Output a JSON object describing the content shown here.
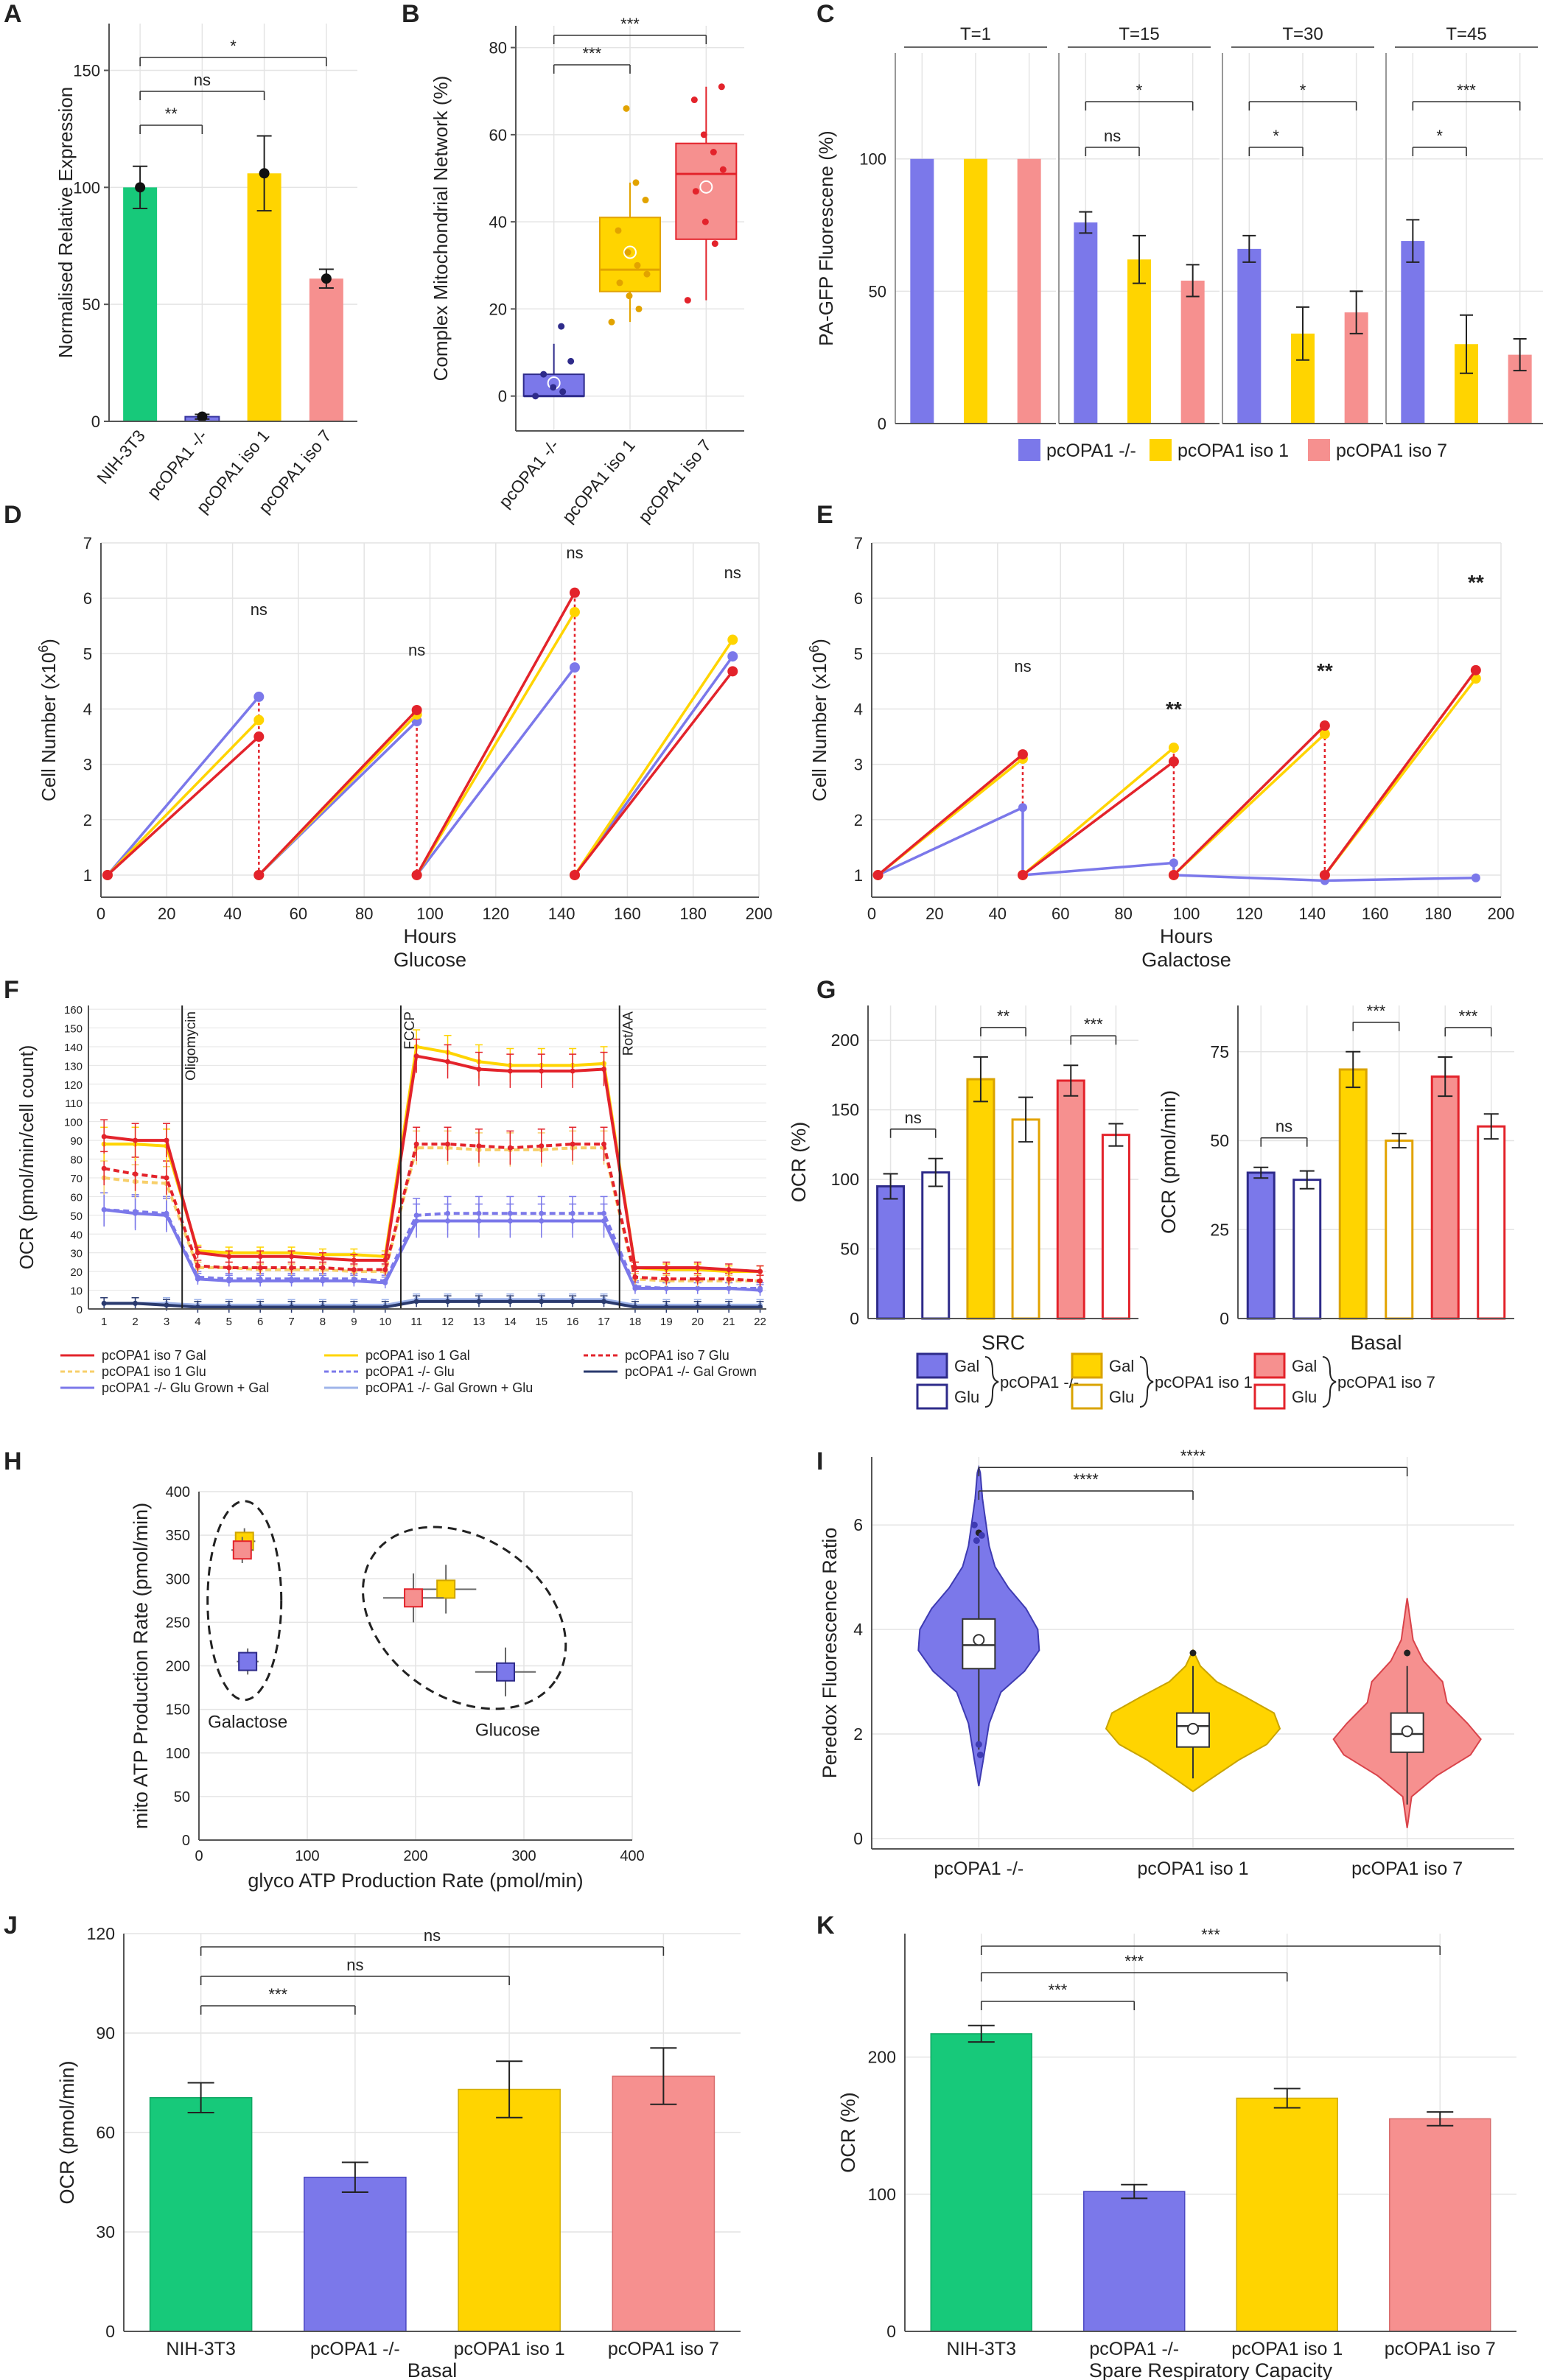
{
  "colors": {
    "green": "#17c97a",
    "blue": "#7b78ea",
    "yellow": "#ffd400",
    "pink": "#f6908f",
    "red": "#e3232b",
    "lightyellow": "#f7cf6a",
    "lightblue": "#9fb4ea",
    "darkblue": "#2a3a6e",
    "navy": "#2e2b8a",
    "gridline": "#e4e4e4"
  },
  "chart_data": [
    {
      "id": "A",
      "type": "bar",
      "title": "",
      "xlabel": "",
      "ylabel": "Normalised Relative Expression",
      "ylim": [
        0,
        170
      ],
      "yticks": [
        "0",
        "50",
        "100",
        "150"
      ],
      "categories": [
        "NIH-3T3",
        "pcOPA1 -/-",
        "pcOPA1 iso 1",
        "pcOPA1 iso 7"
      ],
      "values": [
        100,
        2,
        106,
        61
      ],
      "errors": [
        9,
        1,
        16,
        4
      ],
      "significance": [
        {
          "pair": [
            0,
            1
          ],
          "label": "**"
        },
        {
          "pair": [
            0,
            2
          ],
          "label": "ns"
        },
        {
          "pair": [
            0,
            3
          ],
          "label": "*"
        }
      ]
    },
    {
      "id": "B",
      "type": "box",
      "ylabel": "Complex Mitochondrial Network (%)",
      "ylim": [
        -8,
        85
      ],
      "yticks": [
        "0",
        "20",
        "40",
        "60",
        "80"
      ],
      "categories": [
        "pcOPA1 -/-",
        "pcOPA1 iso 1",
        "pcOPA1 iso 7"
      ],
      "boxes": [
        {
          "q1": 0,
          "median": 0,
          "q3": 5,
          "lo": 0,
          "hi": 12,
          "mean": 3
        },
        {
          "q1": 24,
          "median": 29,
          "q3": 41,
          "lo": 17,
          "hi": 49,
          "mean": 33
        },
        {
          "q1": 36,
          "median": 51,
          "q3": 58,
          "lo": 22,
          "hi": 71,
          "mean": 48
        }
      ],
      "significance": [
        {
          "pair": [
            0,
            1
          ],
          "label": "***"
        },
        {
          "pair": [
            0,
            2
          ],
          "label": "***"
        }
      ]
    },
    {
      "id": "C",
      "type": "bar",
      "ylabel": "PA-GFP Fluorescene (%)",
      "ylim": [
        0,
        140
      ],
      "yticks": [
        "0",
        "50",
        "100"
      ],
      "facets": [
        "T=1",
        "T=15",
        "T=30",
        "T=45"
      ],
      "series": [
        {
          "name": "pcOPA1 -/-",
          "values": [
            100,
            76,
            66,
            69
          ],
          "errors": [
            0,
            4,
            5,
            8
          ]
        },
        {
          "name": "pcOPA1 iso 1",
          "values": [
            100,
            62,
            34,
            30
          ],
          "errors": [
            0,
            9,
            10,
            11
          ]
        },
        {
          "name": "pcOPA1 iso 7",
          "values": [
            100,
            54,
            42,
            26
          ],
          "errors": [
            0,
            6,
            8,
            6
          ]
        }
      ],
      "significance": [
        [
          "",
          ""
        ],
        [
          "ns",
          "*"
        ],
        [
          "*",
          "*"
        ],
        [
          "*",
          "***"
        ]
      ],
      "legend": [
        "pcOPA1 -/-",
        "pcOPA1 iso 1",
        "pcOPA1 iso 7"
      ]
    },
    {
      "id": "D",
      "type": "line",
      "title": "Glucose",
      "xlabel": "Hours",
      "ylabel": "Cell Number (x10",
      "ylabel_sup": "6",
      "ylabel_end": ")",
      "xlim": [
        0,
        200
      ],
      "ylim": [
        0.6,
        7
      ],
      "xticks": [
        "0",
        "20",
        "40",
        "60",
        "80",
        "100",
        "120",
        "140",
        "160",
        "180",
        "200"
      ],
      "yticks": [
        "1",
        "2",
        "3",
        "4",
        "5",
        "6",
        "7"
      ],
      "series": [
        {
          "name": "pcOPA1 -/-",
          "segments": [
            [
              [
                2,
                1
              ],
              [
                48,
                4.22
              ]
            ],
            [
              [
                48,
                1
              ],
              [
                96,
                3.78
              ]
            ],
            [
              [
                96,
                1
              ],
              [
                144,
                4.75
              ]
            ],
            [
              [
                144,
                1
              ],
              [
                192,
                4.95
              ]
            ]
          ]
        },
        {
          "name": "pcOPA1 iso 1",
          "segments": [
            [
              [
                2,
                1
              ],
              [
                48,
                3.8
              ]
            ],
            [
              [
                48,
                1
              ],
              [
                96,
                3.9
              ]
            ],
            [
              [
                96,
                1
              ],
              [
                144,
                5.75
              ]
            ],
            [
              [
                144,
                1
              ],
              [
                192,
                5.25
              ]
            ]
          ]
        },
        {
          "name": "pcOPA1 iso 7",
          "segments": [
            [
              [
                2,
                1
              ],
              [
                48,
                3.5
              ]
            ],
            [
              [
                48,
                1
              ],
              [
                96,
                3.98
              ]
            ],
            [
              [
                96,
                1
              ],
              [
                144,
                6.1
              ]
            ],
            [
              [
                144,
                1
              ],
              [
                192,
                4.68
              ]
            ]
          ]
        }
      ],
      "annotations": [
        "ns",
        "ns",
        "ns",
        "ns"
      ]
    },
    {
      "id": "E",
      "type": "line",
      "title": "Galactose",
      "xlabel": "Hours",
      "ylabel": "Cell Number (x10",
      "ylabel_sup": "6",
      "ylabel_end": ")",
      "xlim": [
        0,
        200
      ],
      "ylim": [
        0.6,
        7
      ],
      "xticks": [
        "0",
        "20",
        "40",
        "60",
        "80",
        "100",
        "120",
        "140",
        "160",
        "180",
        "200"
      ],
      "yticks": [
        "1",
        "2",
        "3",
        "4",
        "5",
        "6",
        "7"
      ],
      "series": [
        {
          "name": "pcOPA1 -/-",
          "points": [
            [
              2,
              1
            ],
            [
              48,
              2.22
            ],
            [
              48,
              1
            ],
            [
              96,
              1.22
            ],
            [
              96,
              1
            ],
            [
              144,
              0.9
            ],
            [
              192,
              0.95
            ]
          ]
        },
        {
          "name": "pcOPA1 iso 1",
          "segments": [
            [
              [
                2,
                1
              ],
              [
                48,
                3.1
              ]
            ],
            [
              [
                48,
                1
              ],
              [
                96,
                3.3
              ]
            ],
            [
              [
                96,
                1
              ],
              [
                144,
                3.55
              ]
            ],
            [
              [
                144,
                1
              ],
              [
                192,
                4.55
              ]
            ]
          ]
        },
        {
          "name": "pcOPA1 iso 7",
          "segments": [
            [
              [
                2,
                1
              ],
              [
                48,
                3.18
              ]
            ],
            [
              [
                48,
                1
              ],
              [
                96,
                3.05
              ]
            ],
            [
              [
                96,
                1
              ],
              [
                144,
                3.7
              ]
            ],
            [
              [
                144,
                1
              ],
              [
                192,
                4.7
              ]
            ]
          ]
        }
      ],
      "annotations": [
        "ns",
        "**",
        "**",
        "**"
      ]
    },
    {
      "id": "F",
      "type": "line",
      "ylabel": "OCR (pmol/min/cell count)",
      "xlim": [
        0.5,
        22.2
      ],
      "ylim": [
        0,
        162
      ],
      "xticks": [
        "1",
        "2",
        "3",
        "4",
        "5",
        "6",
        "7",
        "8",
        "9",
        "10",
        "11",
        "12",
        "13",
        "14",
        "15",
        "16",
        "17",
        "18",
        "19",
        "20",
        "21",
        "22"
      ],
      "yticks": [
        "0",
        "10",
        "20",
        "30",
        "40",
        "50",
        "60",
        "70",
        "80",
        "90",
        "100",
        "110",
        "120",
        "130",
        "140",
        "150",
        "160"
      ],
      "injections": [
        "Oligomycin",
        "FCCP",
        "Rot/AA"
      ],
      "series": [
        {
          "name": "pcOPA1 iso 7 Gal",
          "values": [
            92,
            90,
            90,
            30,
            28,
            28,
            28,
            27,
            26,
            26,
            135,
            132,
            128,
            127,
            127,
            127,
            128,
            22,
            22,
            22,
            21,
            20
          ]
        },
        {
          "name": "pcOPA1 iso 1 Gal",
          "values": [
            88,
            88,
            87,
            31,
            30,
            30,
            30,
            29,
            29,
            28,
            140,
            137,
            132,
            130,
            130,
            130,
            131,
            22,
            21,
            21,
            20,
            20
          ]
        },
        {
          "name": "pcOPA1 iso 7 Glu",
          "values": [
            75,
            72,
            70,
            23,
            22,
            22,
            22,
            22,
            21,
            21,
            88,
            88,
            87,
            86,
            87,
            88,
            88,
            17,
            16,
            16,
            16,
            15
          ]
        },
        {
          "name": "pcOPA1 iso 1 Glu",
          "values": [
            70,
            68,
            67,
            22,
            22,
            21,
            21,
            21,
            20,
            20,
            86,
            86,
            85,
            85,
            85,
            86,
            86,
            16,
            15,
            15,
            15,
            15
          ]
        },
        {
          "name": "pcOPA1 -/- Glu",
          "values": [
            53,
            52,
            51,
            17,
            16,
            16,
            16,
            16,
            16,
            15,
            50,
            51,
            51,
            51,
            51,
            51,
            51,
            12,
            11,
            11,
            11,
            11
          ]
        },
        {
          "name": "pcOPA1 -/- Gal Grown",
          "values": [
            3,
            3,
            2,
            1,
            1,
            1,
            1,
            1,
            1,
            1,
            4,
            4,
            4,
            4,
            4,
            4,
            4,
            1,
            1,
            1,
            1,
            1
          ]
        },
        {
          "name": "pcOPA1 -/- Glu Grown + Gal",
          "values": [
            53,
            51,
            50,
            16,
            15,
            15,
            15,
            15,
            15,
            14,
            47,
            47,
            47,
            47,
            47,
            47,
            47,
            11,
            11,
            11,
            11,
            10
          ]
        },
        {
          "name": "pcOPA1 -/- Gal Grown + Glu",
          "values": [
            3,
            3,
            3,
            2,
            2,
            2,
            2,
            2,
            2,
            2,
            5,
            5,
            5,
            5,
            5,
            5,
            5,
            2,
            2,
            2,
            2,
            2
          ]
        }
      ]
    },
    {
      "id": "G",
      "type": "bar",
      "panels": [
        {
          "xlabel": "SRC",
          "ylabel": "OCR (%)",
          "ylim": [
            0,
            225
          ],
          "yticks": [
            "0",
            "50",
            "100",
            "150",
            "200"
          ],
          "values": [
            95,
            105,
            172,
            143,
            171,
            132
          ],
          "errors": [
            9,
            10,
            16,
            16,
            11,
            8
          ],
          "significance": [
            "ns",
            "**",
            "***"
          ]
        },
        {
          "xlabel": "Basal",
          "ylabel": "OCR (pmol/min)",
          "ylim": [
            0,
            88
          ],
          "yticks": [
            "0",
            "25",
            "50",
            "75"
          ],
          "values": [
            41,
            39,
            70,
            50,
            68,
            54
          ],
          "errors": [
            1.5,
            2.5,
            5,
            2,
            5.5,
            3.5
          ],
          "significance": [
            "ns",
            "***",
            "***"
          ]
        }
      ],
      "groups": [
        "pcOPA1 -/-",
        "pcOPA1 iso 1",
        "pcOPA1 iso 7"
      ],
      "conditions": [
        "Gal",
        "Glu"
      ]
    },
    {
      "id": "H",
      "type": "scatter",
      "xlabel": "glyco ATP Production Rate (pmol/min)",
      "ylabel": "mito ATP Production Rate (pmol/min)",
      "xlim": [
        0,
        400
      ],
      "ylim": [
        0,
        400
      ],
      "xticks": [
        "0",
        "100",
        "200",
        "300",
        "400"
      ],
      "yticks": [
        "0",
        "50",
        "100",
        "150",
        "200",
        "250",
        "300",
        "350",
        "400"
      ],
      "points": [
        {
          "group": "Galactose",
          "series": "pcOPA1 iso 1",
          "x": 42,
          "y": 343
        },
        {
          "group": "Galactose",
          "series": "pcOPA1 iso 7",
          "x": 40,
          "y": 333
        },
        {
          "group": "Galactose",
          "series": "pcOPA1 -/-",
          "x": 45,
          "y": 205
        },
        {
          "group": "Glucose",
          "series": "pcOPA1 iso 1",
          "x": 228,
          "y": 288
        },
        {
          "group": "Glucose",
          "series": "pcOPA1 iso 7",
          "x": 198,
          "y": 278
        },
        {
          "group": "Glucose",
          "series": "pcOPA1 -/-",
          "x": 283,
          "y": 193
        }
      ],
      "annotations": [
        "Galactose",
        "Glucose"
      ]
    },
    {
      "id": "I",
      "type": "violin",
      "ylabel": "Peredox Fluorescence Ratio",
      "ylim": [
        -0.2,
        7.3
      ],
      "yticks": [
        "0",
        "2",
        "4",
        "6"
      ],
      "categories": [
        "pcOPA1 -/-",
        "pcOPA1 iso 1",
        "pcOPA1 iso 7"
      ],
      "boxes": [
        {
          "q1": 3.25,
          "median": 3.7,
          "q3": 4.2,
          "lo": 1.7,
          "hi": 5.6,
          "mean": 3.8
        },
        {
          "q1": 1.75,
          "median": 2.15,
          "q3": 2.4,
          "lo": 1.15,
          "hi": 3.3,
          "mean": 2.1
        },
        {
          "q1": 1.65,
          "median": 2.0,
          "q3": 2.4,
          "lo": 0.65,
          "hi": 3.3,
          "mean": 2.05
        }
      ],
      "significance": [
        {
          "pair": [
            0,
            1
          ],
          "label": "****"
        },
        {
          "pair": [
            0,
            2
          ],
          "label": "****"
        }
      ]
    },
    {
      "id": "J",
      "type": "bar",
      "title": "Basal",
      "ylabel": "OCR (pmol/min)",
      "ylim": [
        0,
        120
      ],
      "yticks": [
        "0",
        "30",
        "60",
        "90",
        "120"
      ],
      "categories": [
        "NIH-3T3",
        "pcOPA1 -/-",
        "pcOPA1 iso 1",
        "pcOPA1 iso 7"
      ],
      "values": [
        70.5,
        46.5,
        73,
        77
      ],
      "errors": [
        4.5,
        4.5,
        8.5,
        8.5
      ],
      "significance": [
        {
          "pair": [
            0,
            1
          ],
          "label": "***"
        },
        {
          "pair": [
            0,
            2
          ],
          "label": "ns"
        },
        {
          "pair": [
            0,
            3
          ],
          "label": "ns"
        }
      ]
    },
    {
      "id": "K",
      "type": "bar",
      "title": "Spare Respiratory Capacity",
      "ylabel": "OCR (%)",
      "ylim": [
        0,
        290
      ],
      "yticks": [
        "0",
        "100",
        "200"
      ],
      "categories": [
        "NIH-3T3",
        "pcOPA1 -/-",
        "pcOPA1 iso 1",
        "pcOPA1 iso 7"
      ],
      "values": [
        217,
        102,
        170,
        155
      ],
      "errors": [
        6,
        5,
        7,
        5
      ],
      "significance": [
        {
          "pair": [
            0,
            1
          ],
          "label": "***"
        },
        {
          "pair": [
            0,
            2
          ],
          "label": "***"
        },
        {
          "pair": [
            0,
            3
          ],
          "label": "***"
        }
      ]
    }
  ]
}
